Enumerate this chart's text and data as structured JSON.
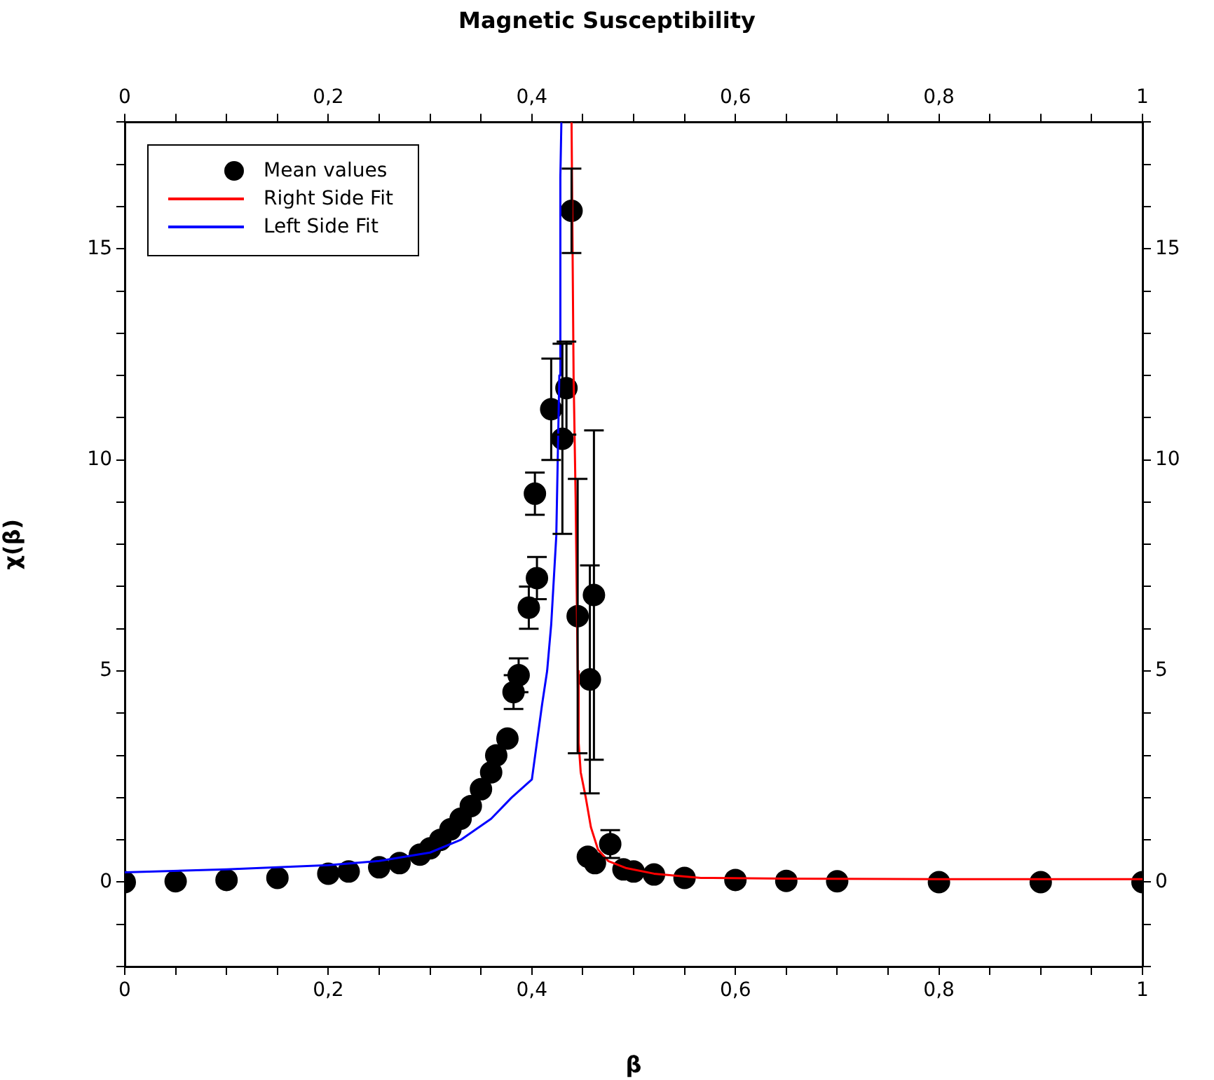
{
  "chart_data": {
    "type": "scatter",
    "title": "Magnetic Susceptibility",
    "xlabel": "β",
    "ylabel": "χ(β)",
    "xlim": [
      0,
      1
    ],
    "x2lim": [
      0,
      1
    ],
    "ylim": [
      -2,
      18
    ],
    "y2lim": [
      -2,
      18
    ],
    "xticks": [
      0,
      {
        "value": 0.05,
        "label": null
      },
      {
        "value": 0.1,
        "label": null
      },
      {
        "value": 0.15,
        "label": null
      },
      {
        "value": 0.2,
        "label": "0,2"
      },
      {
        "value": 0.25,
        "label": null
      },
      {
        "value": 0.3,
        "label": null
      },
      {
        "value": 0.35,
        "label": null
      },
      {
        "value": 0.4,
        "label": "0,4"
      },
      {
        "value": 0.45,
        "label": null
      },
      {
        "value": 0.5,
        "label": null
      },
      {
        "value": 0.55,
        "label": null
      },
      {
        "value": 0.6,
        "label": "0,6"
      },
      {
        "value": 0.65,
        "label": null
      },
      {
        "value": 0.7,
        "label": null
      },
      {
        "value": 0.75,
        "label": null
      },
      {
        "value": 0.8,
        "label": "0,8"
      },
      {
        "value": 0.85,
        "label": null
      },
      {
        "value": 0.9,
        "label": null
      },
      {
        "value": 0.95,
        "label": null
      },
      1
    ],
    "x2ticks": [
      0,
      {
        "value": 0.05,
        "label": null
      },
      {
        "value": 0.1,
        "label": null
      },
      {
        "value": 0.15,
        "label": null
      },
      {
        "value": 0.2,
        "label": "0,2"
      },
      {
        "value": 0.25,
        "label": null
      },
      {
        "value": 0.3,
        "label": null
      },
      {
        "value": 0.35,
        "label": null
      },
      {
        "value": 0.4,
        "label": "0,4"
      },
      {
        "value": 0.45,
        "label": null
      },
      {
        "value": 0.5,
        "label": null
      },
      {
        "value": 0.55,
        "label": null
      },
      {
        "value": 0.6,
        "label": "0,6"
      },
      {
        "value": 0.65,
        "label": null
      },
      {
        "value": 0.7,
        "label": null
      },
      {
        "value": 0.75,
        "label": null
      },
      {
        "value": 0.8,
        "label": "0,8"
      },
      {
        "value": 0.85,
        "label": null
      },
      {
        "value": 0.9,
        "label": null
      },
      {
        "value": 0.95,
        "label": null
      },
      1
    ],
    "yticks": [
      {
        "value": -2,
        "label": null
      },
      {
        "value": -1,
        "label": null
      },
      0,
      {
        "value": 1,
        "label": null
      },
      {
        "value": 2,
        "label": null
      },
      {
        "value": 3,
        "label": null
      },
      {
        "value": 4,
        "label": null
      },
      5,
      {
        "value": 6,
        "label": null
      },
      {
        "value": 7,
        "label": null
      },
      {
        "value": 8,
        "label": null
      },
      {
        "value": 9,
        "label": null
      },
      10,
      {
        "value": 11,
        "label": null
      },
      {
        "value": 12,
        "label": null
      },
      {
        "value": 13,
        "label": null
      },
      {
        "value": 14,
        "label": null
      },
      15,
      {
        "value": 16,
        "label": null
      },
      {
        "value": 17,
        "label": null
      },
      {
        "value": 18,
        "label": null
      }
    ],
    "y2ticks": [
      {
        "value": -2,
        "label": null
      },
      {
        "value": -1,
        "label": null
      },
      0,
      {
        "value": 1,
        "label": null
      },
      {
        "value": 2,
        "label": null
      },
      {
        "value": 3,
        "label": null
      },
      {
        "value": 4,
        "label": null
      },
      5,
      {
        "value": 6,
        "label": null
      },
      {
        "value": 7,
        "label": null
      },
      {
        "value": 8,
        "label": null
      },
      {
        "value": 9,
        "label": null
      },
      10,
      {
        "value": 11,
        "label": null
      },
      {
        "value": 12,
        "label": null
      },
      {
        "value": 13,
        "label": null
      },
      {
        "value": 14,
        "label": null
      },
      15,
      {
        "value": 16,
        "label": null
      },
      {
        "value": 17,
        "label": null
      },
      {
        "value": 18,
        "label": null
      }
    ],
    "grid": false,
    "legend": "top left",
    "series": [
      {
        "name": "Mean values",
        "type": "scatter",
        "color": "#000000",
        "marker": "circle",
        "x": [
          0,
          0.05,
          0.1,
          0.15,
          0.2,
          0.22,
          0.25,
          0.27,
          0.29,
          0.3,
          0.31,
          0.32,
          0.33,
          0.34,
          0.35,
          0.36,
          0.365,
          0.372,
          0.376,
          0.382,
          0.387,
          0.397,
          0.401,
          0.403,
          0.405,
          0.419,
          0.43,
          0.434,
          0.439,
          0.445,
          0.455,
          0.457,
          0.461,
          0.462,
          0.477,
          0.49,
          0.5,
          0.52,
          0.55,
          0.6,
          0.65,
          0.7,
          0.8,
          0.9,
          1
        ],
        "values": [
          0,
          0.02,
          0.05,
          0.1,
          0.2,
          0.25,
          0.35,
          0.45,
          0.65,
          0.8,
          1,
          1.25,
          1.5,
          1.8,
          2.2,
          2.6,
          3,
          null,
          3.4,
          4.5,
          4.9,
          6.5,
          null,
          9.2,
          7.2,
          11.2,
          10.5,
          11.7,
          15.9,
          6.3,
          0.6,
          4.8,
          6.8,
          0.45,
          0.9,
          0.3,
          0.25,
          0.18,
          0.1,
          0.05,
          0.03,
          0.02,
          0,
          0,
          0
        ],
        "errors": [
          null,
          null,
          null,
          null,
          null,
          null,
          null,
          null,
          null,
          null,
          null,
          null,
          null,
          null,
          null,
          null,
          null,
          null,
          null,
          0.4,
          0.4,
          0.5,
          null,
          0.5,
          0.5,
          1.2,
          2.25,
          1.1,
          1,
          3.25,
          null,
          2.7,
          3.9,
          null,
          0.33,
          null,
          null,
          null,
          null,
          null,
          null,
          null,
          null,
          null,
          null
        ]
      },
      {
        "name": "Right Side Fit",
        "type": "line",
        "color": "#ff0000",
        "marker": "none",
        "x": [
          0.439,
          0.441,
          0.443,
          0.445,
          0.446,
          0.448,
          0.453,
          0.458,
          0.465,
          0.475,
          0.493,
          0.52,
          0.566,
          0.65,
          0.8,
          1
        ],
        "values": [
          18,
          12,
          9.1,
          5,
          3.3,
          2.6,
          2,
          1.3,
          0.77,
          0.5,
          0.33,
          0.2,
          0.1,
          0.08,
          0.07,
          0.07
        ]
      },
      {
        "name": "Left Side Fit",
        "type": "line",
        "color": "#0000ff",
        "marker": "none",
        "x": [
          0,
          0.1,
          0.2,
          0.25,
          0.3,
          0.33,
          0.36,
          0.38,
          0.4,
          0.41,
          0.415,
          0.419,
          0.424,
          0.427,
          0.428,
          0.429
        ],
        "values": [
          0.23,
          0.3,
          0.4,
          0.5,
          0.7,
          1,
          1.5,
          2,
          2.43,
          4.2,
          5,
          6.1,
          8.2,
          12,
          16.7,
          18
        ]
      }
    ]
  }
}
